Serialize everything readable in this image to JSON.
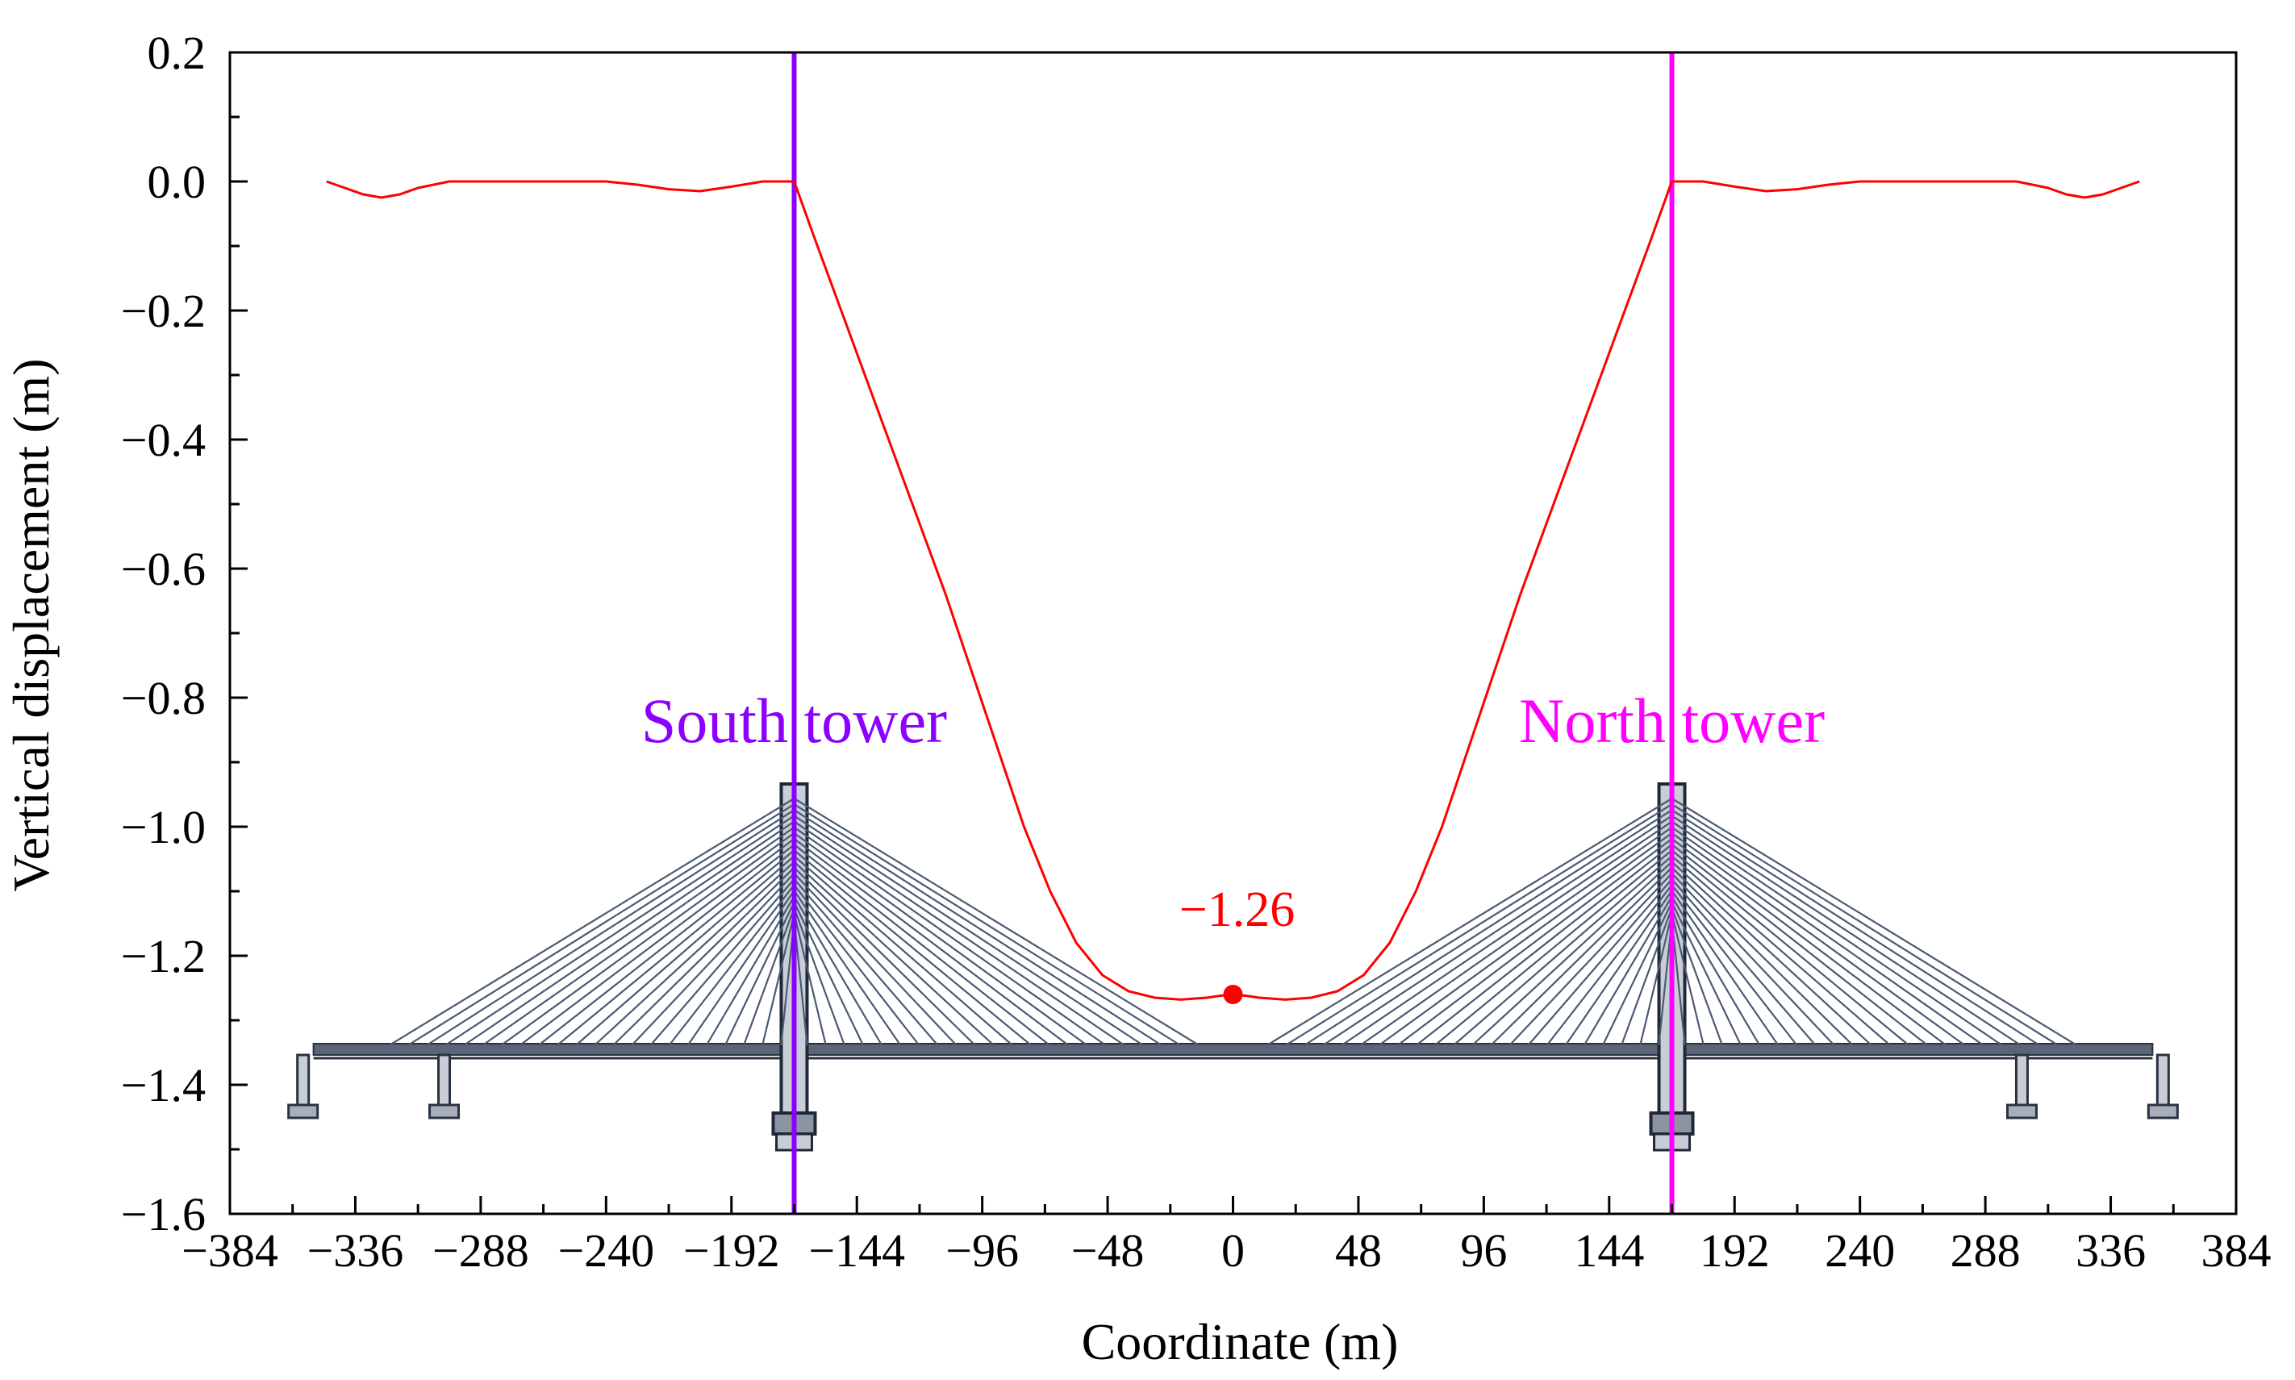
{
  "chart_data": {
    "type": "line",
    "xlabel": "Coordinate (m)",
    "ylabel": "Vertical displacement (m)",
    "xlim": [
      -384,
      384
    ],
    "ylim": [
      -1.6,
      0.2
    ],
    "xticks": [
      -384,
      -336,
      -288,
      -240,
      -192,
      -144,
      -96,
      -48,
      0,
      48,
      96,
      144,
      192,
      240,
      288,
      336,
      384
    ],
    "xtick_labels": [
      "−384",
      "−336",
      "−288",
      "−240",
      "−192",
      "−144",
      "−96",
      "−48",
      "0",
      "48",
      "96",
      "144",
      "192",
      "240",
      "288",
      "336",
      "384"
    ],
    "yticks": [
      0.2,
      0.0,
      -0.2,
      -0.4,
      -0.6,
      -0.8,
      -1.0,
      -1.2,
      -1.4,
      -1.6
    ],
    "ytick_labels": [
      "0.2",
      "0.0",
      "−0.2",
      "−0.4",
      "−0.6",
      "−0.8",
      "−1.0",
      "−1.2",
      "−1.4",
      "−1.6"
    ],
    "grid": false,
    "series": [
      {
        "color": "#ff0000",
        "x": [
          -347,
          -340,
          -333,
          -326,
          -319,
          -312,
          -300,
          -288,
          -276,
          -264,
          -252,
          -240,
          -228,
          -216,
          -204,
          -192,
          -180,
          -175,
          -168,
          -160,
          -150,
          -140,
          -130,
          -120,
          -110,
          -100,
          -90,
          -80,
          -70,
          -60,
          -50,
          -40,
          -30,
          -20,
          -10,
          -5,
          0,
          5,
          10,
          20,
          30,
          40,
          50,
          60,
          70,
          80,
          90,
          100,
          110,
          120,
          130,
          140,
          150,
          160,
          168,
          175,
          180,
          192,
          204,
          216,
          228,
          240,
          252,
          264,
          276,
          288,
          300,
          312,
          319,
          326,
          333,
          340,
          347
        ],
        "y": [
          0.0,
          -0.01,
          -0.02,
          -0.025,
          -0.02,
          -0.01,
          0.0,
          0.0,
          0.0,
          0.0,
          0.0,
          0.0,
          -0.005,
          -0.012,
          -0.015,
          -0.008,
          0.0,
          0.0,
          0.0,
          -0.09,
          -0.2,
          -0.31,
          -0.42,
          -0.53,
          -0.64,
          -0.76,
          -0.88,
          -1.0,
          -1.1,
          -1.18,
          -1.23,
          -1.255,
          -1.265,
          -1.268,
          -1.265,
          -1.262,
          -1.26,
          -1.262,
          -1.265,
          -1.268,
          -1.265,
          -1.255,
          -1.23,
          -1.18,
          -1.1,
          -1.0,
          -0.88,
          -0.76,
          -0.64,
          -0.53,
          -0.42,
          -0.31,
          -0.2,
          -0.09,
          0.0,
          0.0,
          0.0,
          -0.008,
          -0.015,
          -0.012,
          -0.005,
          0.0,
          0.0,
          0.0,
          0.0,
          0.0,
          0.0,
          -0.01,
          -0.02,
          -0.025,
          -0.02,
          -0.01,
          0.0
        ]
      }
    ],
    "towers": [
      {
        "label": "South tower",
        "x": -168,
        "color": "#8b00ff"
      },
      {
        "label": "North tower",
        "x": 168,
        "color": "#ff00ff"
      }
    ],
    "annotation": {
      "text": "−1.26",
      "x": 0,
      "y": -1.26,
      "color": "#ff0000"
    }
  }
}
